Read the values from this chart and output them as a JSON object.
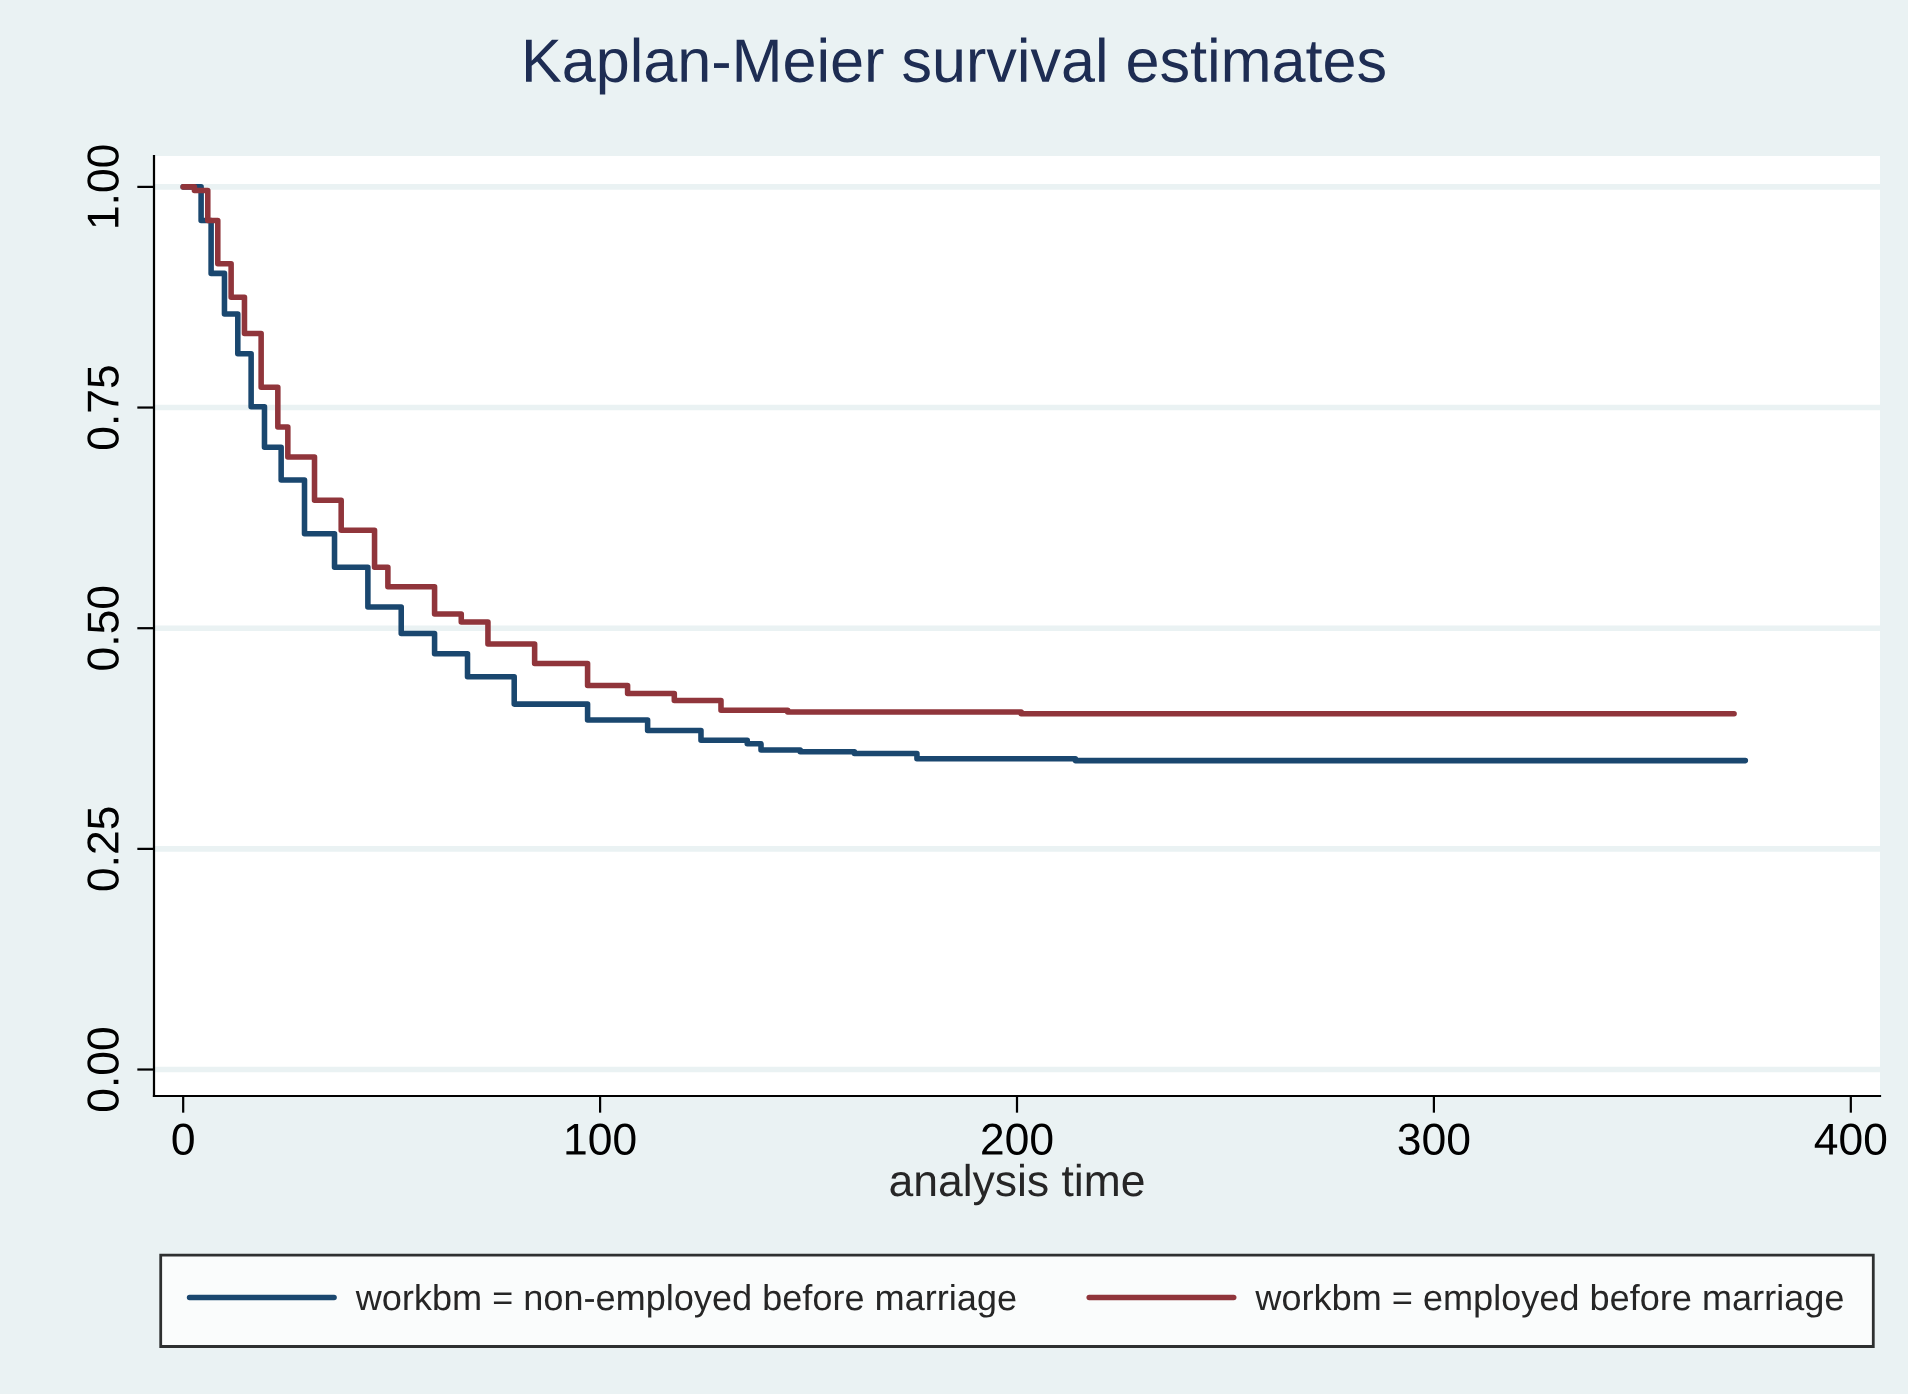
{
  "chart_data": {
    "type": "step",
    "title": "Kaplan-Meier survival estimates",
    "xlabel": "analysis time",
    "xlim": [
      -7,
      407
    ],
    "xticks": [
      0,
      100,
      200,
      300,
      400
    ],
    "ylim": [
      -0.03,
      1.035
    ],
    "yticks": [
      {
        "value": 0,
        "label": "0.00"
      },
      {
        "value": 0.25,
        "label": "0.25"
      },
      {
        "value": 0.5,
        "label": "0.50"
      },
      {
        "value": 0.75,
        "label": "0.75"
      },
      {
        "value": 1,
        "label": "1.00"
      }
    ],
    "grid": "y",
    "legend": "bottom",
    "marker": "none",
    "line_style": "solid",
    "series": [
      {
        "name": "workbm = non-employed before marriage",
        "color": "#1a476f",
        "x": [
          0,
          2,
          4.3,
          6.7,
          9.9,
          13.1,
          16.3,
          19.5,
          23.5,
          29.1,
          36.3,
          44.3,
          52.3,
          60.3,
          68.2,
          79.4,
          97,
          111.4,
          124.2,
          135.3,
          138.6,
          148,
          161,
          176,
          214,
          374.7
        ],
        "values": [
          1,
          1,
          0.962,
          0.902,
          0.856,
          0.811,
          0.751,
          0.705,
          0.668,
          0.607,
          0.569,
          0.524,
          0.494,
          0.471,
          0.445,
          0.414,
          0.396,
          0.384,
          0.373,
          0.369,
          0.362,
          0.36,
          0.358,
          0.352,
          0.35,
          0.35
        ]
      },
      {
        "name": "workbm = employed before marriage",
        "color": "#90353b",
        "x": [
          0,
          2.7,
          5.9,
          8.3,
          11.5,
          14.7,
          18.7,
          22.7,
          25.1,
          31.5,
          37.9,
          45.9,
          49.1,
          60.3,
          66.7,
          73.1,
          84.3,
          97,
          106.6,
          117.8,
          129,
          145,
          201,
          372
        ],
        "values": [
          1,
          0.996,
          0.962,
          0.913,
          0.875,
          0.834,
          0.773,
          0.728,
          0.694,
          0.645,
          0.611,
          0.569,
          0.547,
          0.516,
          0.507,
          0.482,
          0.46,
          0.435,
          0.426,
          0.418,
          0.407,
          0.405,
          0.403,
          0.403
        ]
      }
    ]
  }
}
